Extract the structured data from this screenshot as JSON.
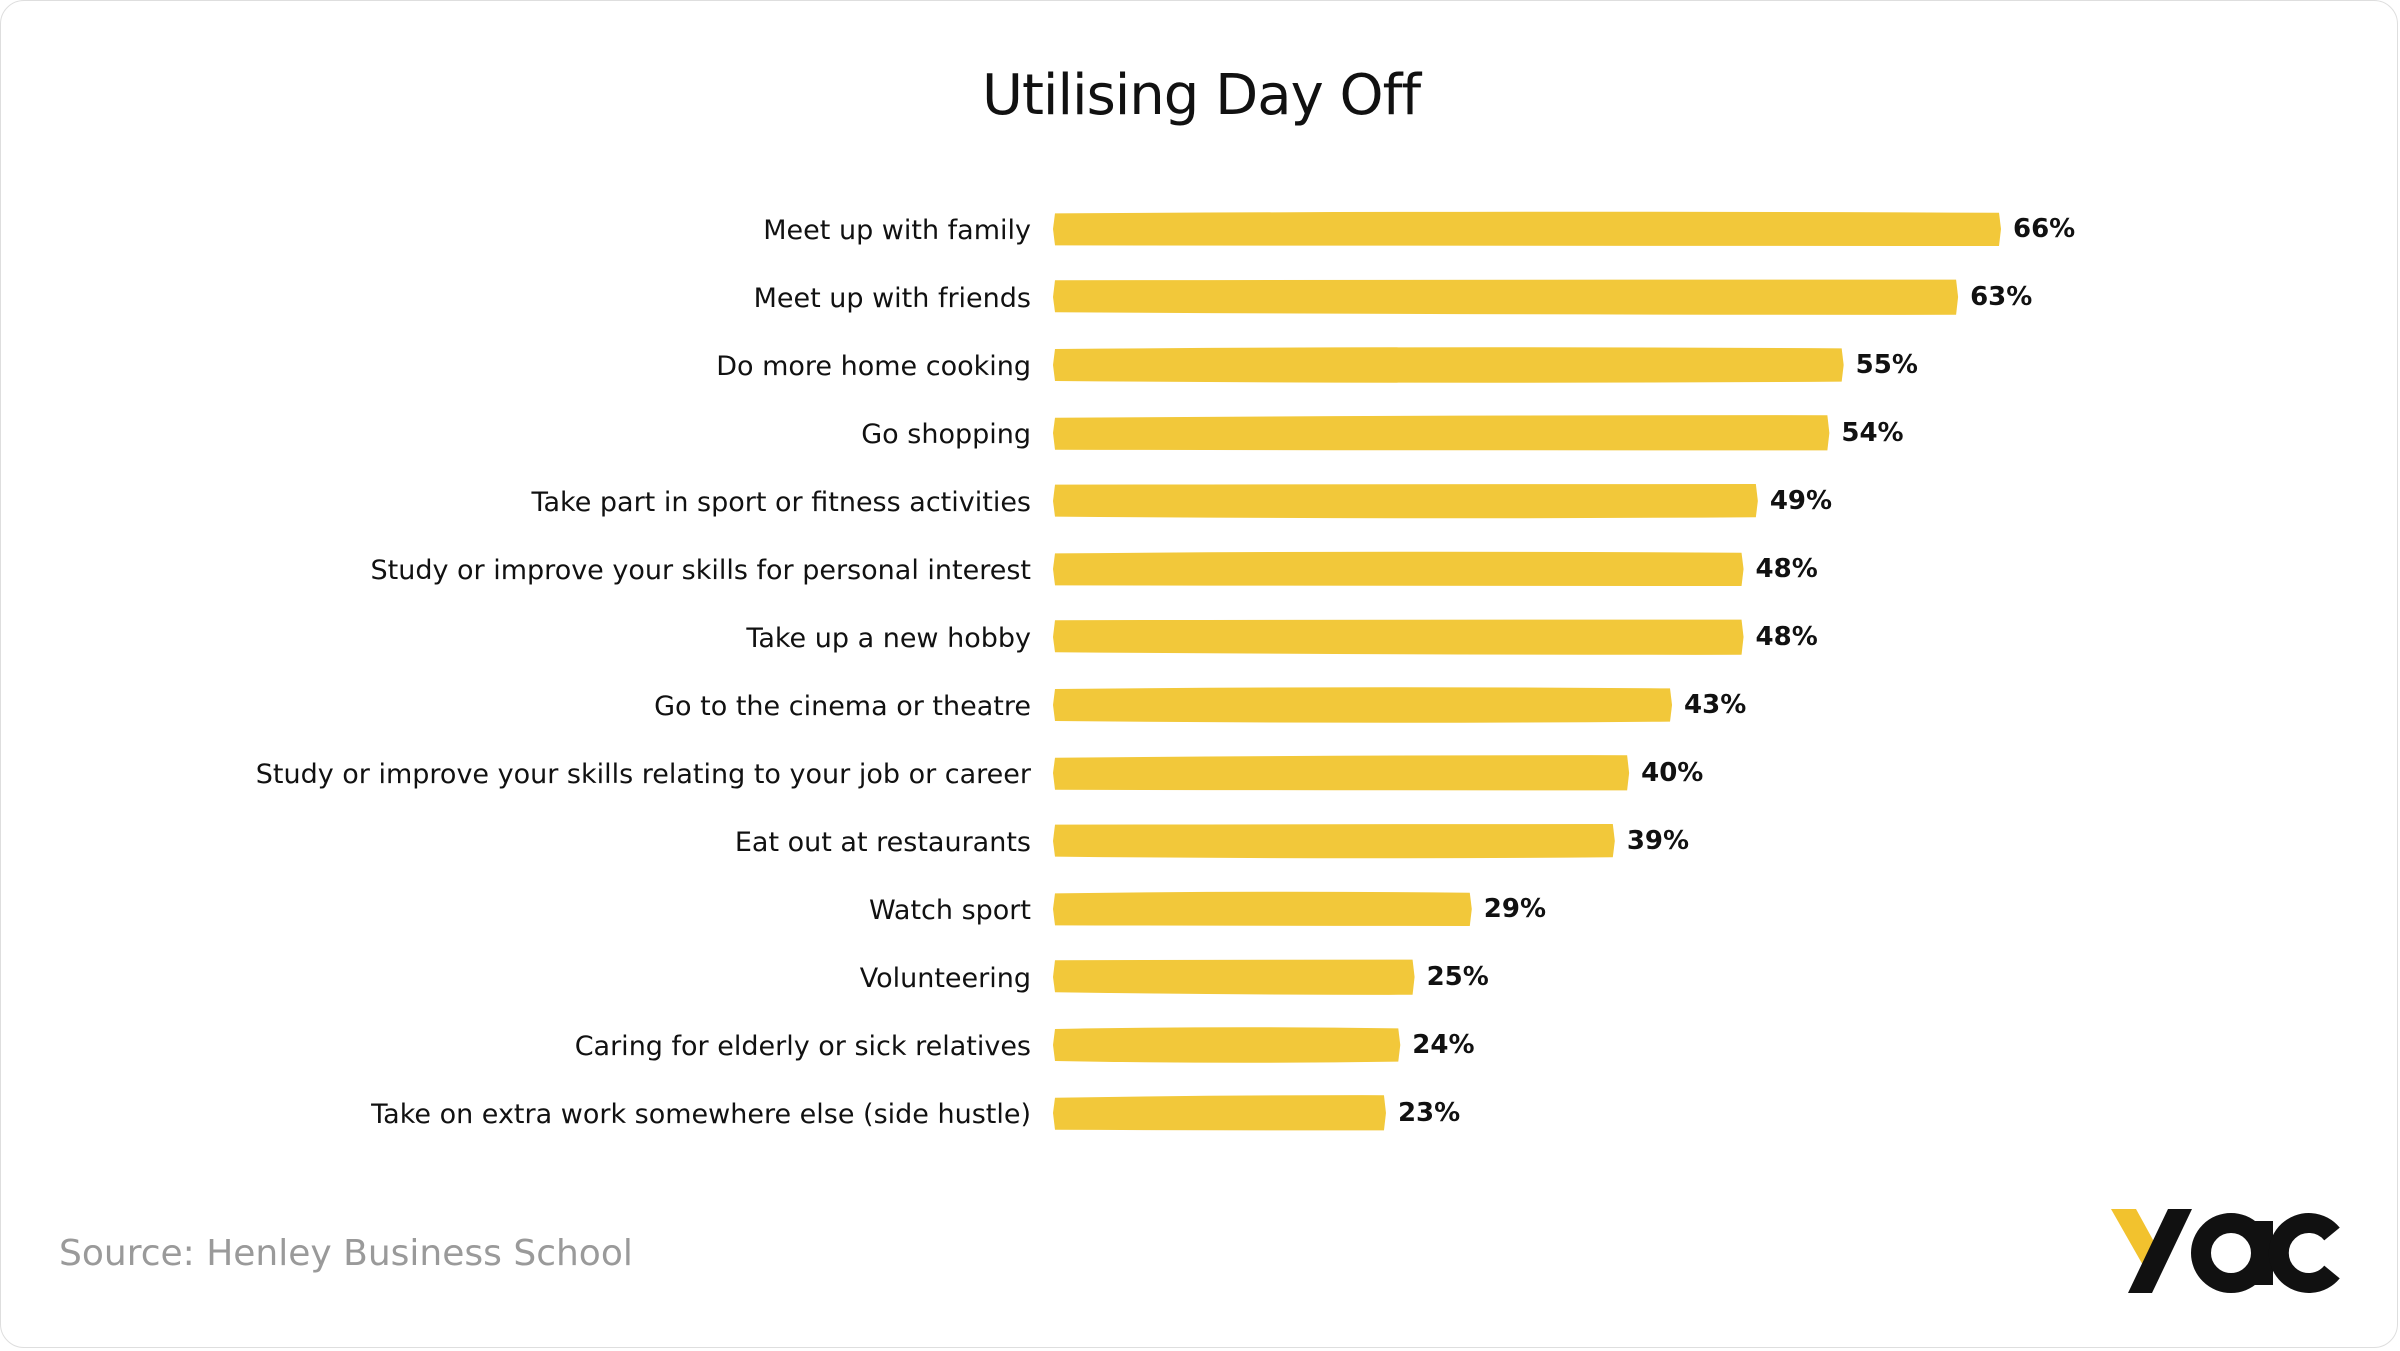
{
  "title": "Utilising Day Off",
  "source": "Source: Henley Business School",
  "logo": {
    "text": "yac",
    "icon": "yac-logo",
    "accent_color": "#f2c22e",
    "dark_color": "#111111"
  },
  "colors": {
    "bar": "#f2c83a",
    "text": "#111111",
    "source_text": "#9a9a9a"
  },
  "chart_data": {
    "type": "bar",
    "orientation": "horizontal",
    "title": "Utilising Day Off",
    "categories": [
      "Meet up with family",
      "Meet up with friends",
      "Do more home cooking",
      "Go shopping",
      "Take part in sport or fitness activities",
      "Study or improve your skills for personal interest",
      "Take up a new hobby",
      "Go to the cinema or theatre",
      "Study or improve your skills relating to your job or career",
      "Eat out at restaurants",
      "Watch sport",
      "Volunteering",
      "Caring for elderly or sick relatives",
      "Take on extra work somewhere else (side hustle)"
    ],
    "values": [
      66,
      63,
      55,
      54,
      49,
      48,
      48,
      43,
      40,
      39,
      29,
      25,
      24,
      23
    ],
    "value_labels": [
      "66%",
      "63%",
      "55%",
      "54%",
      "49%",
      "48%",
      "48%",
      "43%",
      "40%",
      "39%",
      "29%",
      "25%",
      "24%",
      "23%"
    ],
    "unit": "%",
    "xlim": [
      0,
      66
    ],
    "grid": false,
    "legend": "none"
  }
}
